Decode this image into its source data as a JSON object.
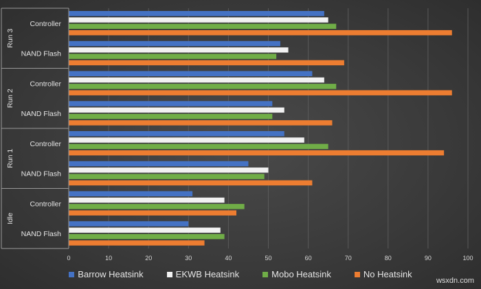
{
  "chart_data": {
    "type": "bar",
    "orientation": "horizontal",
    "groups": [
      {
        "label": "Run 3",
        "categories": [
          "Controller",
          "NAND Flash"
        ]
      },
      {
        "label": "Run 2",
        "categories": [
          "Controller",
          "NAND Flash"
        ]
      },
      {
        "label": "Run 1",
        "categories": [
          "Controller",
          "NAND Flash"
        ]
      },
      {
        "label": "Idle",
        "categories": [
          "Controller",
          "NAND Flash"
        ]
      }
    ],
    "series": [
      {
        "name": "Barrow Heatsink",
        "color": "#4472c4",
        "values": [
          64,
          53,
          61,
          51,
          54,
          45,
          31,
          30
        ]
      },
      {
        "name": "EKWB Heatsink",
        "color": "#f2f2f2",
        "values": [
          65,
          55,
          64,
          54,
          59,
          50,
          39,
          38
        ]
      },
      {
        "name": "Mobo Heatsink",
        "color": "#70ad47",
        "values": [
          67,
          52,
          67,
          51,
          65,
          49,
          44,
          39
        ]
      },
      {
        "name": "No Heatsink",
        "color": "#ed7d31",
        "values": [
          96,
          69,
          96,
          66,
          94,
          61,
          42,
          34
        ]
      }
    ],
    "xlim": [
      0,
      100
    ],
    "xticks": [
      0,
      10,
      20,
      30,
      40,
      50,
      60,
      70,
      80,
      90,
      100
    ],
    "grid": true,
    "legend": "bottom",
    "title": "",
    "xlabel": "",
    "ylabel": ""
  },
  "watermark": "wsxdn.com"
}
